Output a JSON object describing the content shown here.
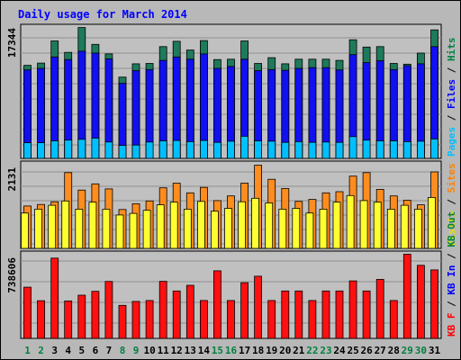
{
  "chart_data": {
    "type": "bar",
    "title": "Daily usage for March 2014",
    "categories": [
      "1",
      "2",
      "3",
      "4",
      "5",
      "6",
      "7",
      "8",
      "9",
      "10",
      "11",
      "12",
      "13",
      "14",
      "15",
      "16",
      "17",
      "18",
      "19",
      "20",
      "21",
      "22",
      "23",
      "24",
      "25",
      "26",
      "27",
      "28",
      "29",
      "30",
      "31"
    ],
    "weekend_days": [
      "1",
      "2",
      "8",
      "9",
      "15",
      "16",
      "22",
      "23",
      "29",
      "30"
    ],
    "panels": [
      {
        "id": "pages-files-hits",
        "max_label": "17344",
        "max": 17344,
        "legend": [
          {
            "text": "Pages",
            "color": "#00c0ff"
          },
          {
            "text": " / ",
            "color": "#000000"
          },
          {
            "text": "Files",
            "color": "#0000ff"
          },
          {
            "text": " / ",
            "color": "#000000"
          },
          {
            "text": "Hits",
            "color": "#008040"
          }
        ],
        "series": [
          {
            "name": "Hits",
            "color": "#1e7a5a",
            "values": [
              12200,
              12500,
              15400,
              13900,
              17150,
              14950,
              13700,
              10650,
              12400,
              12450,
              14650,
              15350,
              14200,
              15450,
              12950,
              13000,
              15400,
              12450,
              13200,
              12400,
              13000,
              13000,
              13000,
              12850,
              15550,
              14600,
              14650,
              12450,
              12350,
              13800,
              16850
            ]
          },
          {
            "name": "Files",
            "color": "#1010f0",
            "values": [
              11600,
              11800,
              13300,
              12950,
              14050,
              13800,
              13050,
              9850,
              11500,
              11650,
              12850,
              13300,
              13000,
              13700,
              11800,
              12050,
              13000,
              11500,
              11650,
              11550,
              11800,
              11900,
              11900,
              11600,
              13600,
              12550,
              12800,
              11650,
              12150,
              12400,
              14650
            ]
          },
          {
            "name": "Pages",
            "color": "#00bfff",
            "values": [
              2050,
              2050,
              2300,
              2400,
              2500,
              2650,
              2150,
              1700,
              1750,
              2150,
              2300,
              2350,
              2200,
              2350,
              2100,
              2250,
              2900,
              2300,
              2250,
              2100,
              2200,
              2100,
              2150,
              2100,
              2850,
              2400,
              2300,
              2300,
              2200,
              2250,
              2550
            ]
          }
        ]
      },
      {
        "id": "visits-sites",
        "max_label": "2131",
        "max": 2131,
        "legend": [
          {
            "text": "Visits",
            "color": "#e0e000"
          },
          {
            "text": " / ",
            "color": "#000000"
          },
          {
            "text": "Sites",
            "color": "#ff8000"
          }
        ],
        "series": [
          {
            "name": "Sites",
            "color": "#ff8c1e",
            "values": [
              1090,
              1130,
              1200,
              1950,
              1500,
              1660,
              1530,
              1000,
              1150,
              1220,
              1560,
              1680,
              1430,
              1570,
              1230,
              1350,
              1680,
              2140,
              1780,
              1540,
              1210,
              1260,
              1430,
              1460,
              1860,
              1950,
              1520,
              1350,
              1240,
              1120,
              1970
            ]
          },
          {
            "name": "Visits",
            "color": "#ffff30",
            "values": [
              910,
              1010,
              1110,
              1220,
              1010,
              1190,
              1010,
              860,
              900,
              980,
              1120,
              1190,
              1010,
              1210,
              960,
              1030,
              1200,
              1290,
              1170,
              1010,
              1030,
              910,
              1010,
              1190,
              1360,
              1230,
              1190,
              1010,
              1110,
              1010,
              1310
            ]
          }
        ]
      },
      {
        "id": "kb",
        "max_label": "738606",
        "max": 738606,
        "legend": [
          {
            "text": "KB F",
            "color": "#ff0000"
          },
          {
            "text": " / ",
            "color": "#000000"
          },
          {
            "text": "KB In",
            "color": "#0000ff"
          },
          {
            "text": " / ",
            "color": "#000000"
          },
          {
            "text": "KB Out",
            "color": "#008040"
          }
        ],
        "series": [
          {
            "name": "KB F",
            "color": "#ff1010",
            "values": [
              457000,
              336000,
              716000,
              334000,
              385000,
              420000,
              508000,
              295000,
              330000,
              338000,
              509000,
              423000,
              474000,
              338000,
              603000,
              338000,
              497000,
              555000,
              338000,
              423000,
              423000,
              338000,
              423000,
              423000,
              513000,
              423000,
              527000,
              338000,
              751000,
              652000,
              611000
            ]
          }
        ]
      }
    ]
  }
}
